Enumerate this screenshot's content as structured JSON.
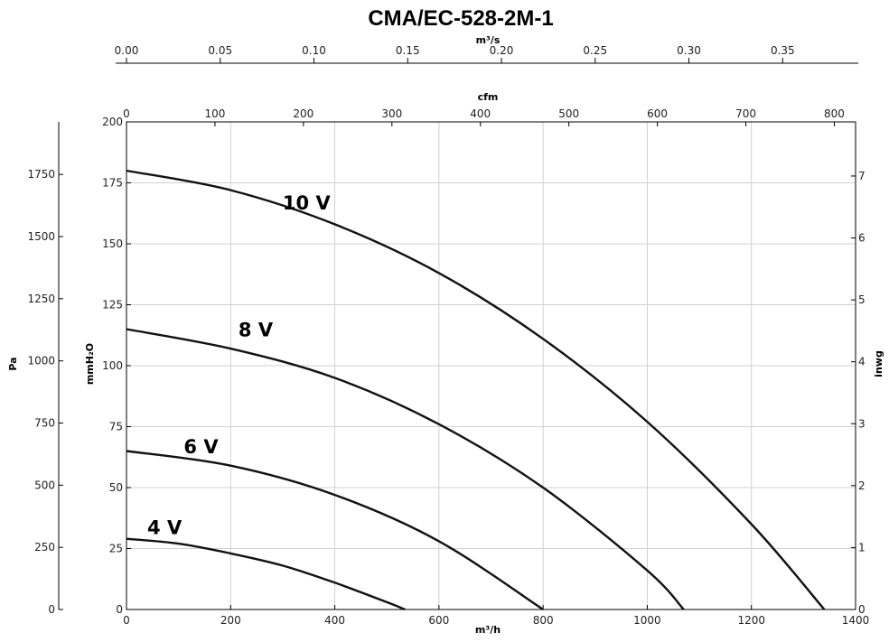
{
  "chart_data": {
    "type": "line",
    "title": "CMA/EC-528-2M-1",
    "x_bottom": {
      "label": "m³/h",
      "range": [
        0,
        1400
      ],
      "ticks": [
        0,
        200,
        400,
        600,
        800,
        1000,
        1200,
        1400
      ]
    },
    "x_top_cfm": {
      "label": "cfm",
      "ticks": [
        0,
        100,
        200,
        300,
        400,
        500,
        600,
        700,
        800
      ]
    },
    "x_top_m3s": {
      "label": "m³/s",
      "ticks": [
        "0.00",
        "0.05",
        "0.10",
        "0.15",
        "0.20",
        "0.25",
        "0.30",
        "0.35"
      ]
    },
    "y_left_mmh2o": {
      "label": "mmH₂O",
      "range": [
        0,
        200
      ],
      "ticks": [
        0,
        25,
        50,
        75,
        100,
        125,
        150,
        175,
        200
      ]
    },
    "y_far_left_pa": {
      "label": "Pa",
      "ticks": [
        0,
        250,
        500,
        750,
        1000,
        1250,
        1500,
        1750
      ]
    },
    "y_right_inwg": {
      "label": "inwg",
      "ticks": [
        0,
        1,
        2,
        3,
        4,
        5,
        6,
        7
      ]
    },
    "grid": true,
    "series": [
      {
        "name": "10 V",
        "x": [
          0,
          200,
          400,
          600,
          800,
          1000,
          1200,
          1340
        ],
        "y": [
          180,
          172,
          158,
          138,
          111,
          77,
          35,
          0
        ]
      },
      {
        "name": "8 V",
        "x": [
          0,
          200,
          400,
          600,
          800,
          1000,
          1070
        ],
        "y": [
          115,
          107,
          95,
          76,
          50,
          16,
          0
        ]
      },
      {
        "name": "6 V",
        "x": [
          0,
          200,
          400,
          600,
          800
        ],
        "y": [
          65,
          59,
          47,
          28,
          0
        ]
      },
      {
        "name": "4 V",
        "x": [
          0,
          100,
          200,
          300,
          400,
          500,
          535
        ],
        "y": [
          29,
          27,
          23,
          18,
          11,
          3,
          0
        ]
      }
    ]
  }
}
